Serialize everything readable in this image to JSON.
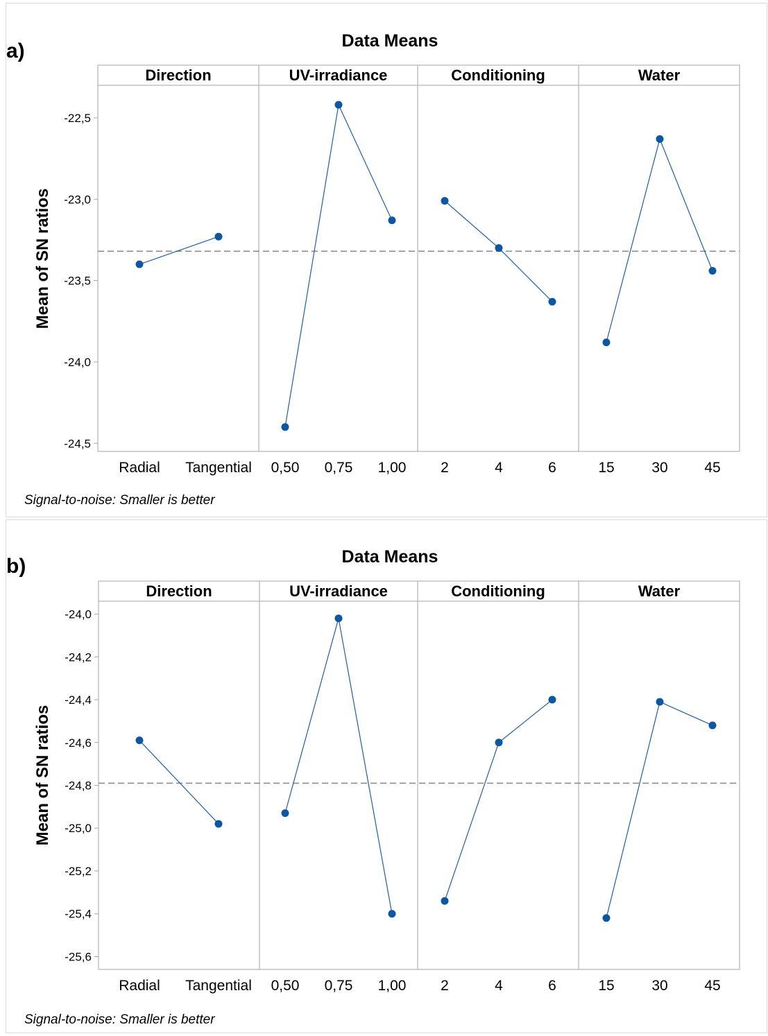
{
  "charts": [
    {
      "panel_label": "a)",
      "title": "Data Means",
      "ylabel": "Mean of SN ratios",
      "footnote": "Signal-to-noise: Smaller is better",
      "ylim": [
        -24.55,
        -22.3
      ],
      "yticks": [
        -22.5,
        -23.0,
        -23.5,
        -24.0,
        -24.5
      ],
      "ytick_labels": [
        "-22,5",
        "-23,0",
        "-23,5",
        "-24,0",
        "-24,5"
      ],
      "reference_mean": -23.32,
      "factors": [
        {
          "name": "Direction",
          "levels": [
            "Radial",
            "Tangential"
          ],
          "values": [
            -23.4,
            -23.23
          ]
        },
        {
          "name": "UV-irradiance",
          "levels": [
            "0,50",
            "0,75",
            "1,00"
          ],
          "values": [
            -24.4,
            -22.42,
            -23.13
          ]
        },
        {
          "name": "Conditioning",
          "levels": [
            "2",
            "4",
            "6"
          ],
          "values": [
            -23.01,
            -23.3,
            -23.63
          ]
        },
        {
          "name": "Water",
          "levels": [
            "15",
            "30",
            "45"
          ],
          "values": [
            -23.88,
            -22.63,
            -23.44
          ]
        }
      ]
    },
    {
      "panel_label": "b)",
      "title": "Data Means",
      "ylabel": "Mean of SN ratios",
      "footnote": "Signal-to-noise: Smaller is better",
      "ylim": [
        -25.66,
        -23.94
      ],
      "yticks": [
        -24.0,
        -24.2,
        -24.4,
        -24.6,
        -24.8,
        -25.0,
        -25.2,
        -25.4,
        -25.6
      ],
      "ytick_labels": [
        "-24,0",
        "-24,2",
        "-24,4",
        "-24,6",
        "-24,8",
        "-25,0",
        "-25,2",
        "-25,4",
        "-25,6"
      ],
      "reference_mean": -24.79,
      "factors": [
        {
          "name": "Direction",
          "levels": [
            "Radial",
            "Tangential"
          ],
          "values": [
            -24.59,
            -24.98
          ]
        },
        {
          "name": "UV-irradiance",
          "levels": [
            "0,50",
            "0,75",
            "1,00"
          ],
          "values": [
            -24.93,
            -24.02,
            -25.4
          ]
        },
        {
          "name": "Conditioning",
          "levels": [
            "2",
            "4",
            "6"
          ],
          "values": [
            -25.34,
            -24.6,
            -24.4
          ]
        },
        {
          "name": "Water",
          "levels": [
            "15",
            "30",
            "45"
          ],
          "values": [
            -25.42,
            -24.41,
            -24.52
          ]
        }
      ]
    }
  ],
  "chart_data": [
    {
      "type": "line",
      "title": "Data Means",
      "ylabel": "Mean of SN ratios",
      "ylim": [
        -24.55,
        -22.3
      ],
      "series": [
        {
          "name": "Direction",
          "x": [
            "Radial",
            "Tangential"
          ],
          "values": [
            -23.4,
            -23.23
          ]
        },
        {
          "name": "UV-irradiance",
          "x": [
            "0,50",
            "0,75",
            "1,00"
          ],
          "values": [
            -24.4,
            -22.42,
            -23.13
          ]
        },
        {
          "name": "Conditioning",
          "x": [
            "2",
            "4",
            "6"
          ],
          "values": [
            -23.01,
            -23.3,
            -23.63
          ]
        },
        {
          "name": "Water",
          "x": [
            "15",
            "30",
            "45"
          ],
          "values": [
            -23.88,
            -22.63,
            -23.44
          ]
        }
      ],
      "reference_mean": -23.32
    },
    {
      "type": "line",
      "title": "Data Means",
      "ylabel": "Mean of SN ratios",
      "ylim": [
        -25.66,
        -23.94
      ],
      "series": [
        {
          "name": "Direction",
          "x": [
            "Radial",
            "Tangential"
          ],
          "values": [
            -24.59,
            -24.98
          ]
        },
        {
          "name": "UV-irradiance",
          "x": [
            "0,50",
            "0,75",
            "1,00"
          ],
          "values": [
            -24.93,
            -24.02,
            -25.4
          ]
        },
        {
          "name": "Conditioning",
          "x": [
            "2",
            "4",
            "6"
          ],
          "values": [
            -25.34,
            -24.6,
            -24.4
          ]
        },
        {
          "name": "Water",
          "x": [
            "15",
            "30",
            "45"
          ],
          "values": [
            -25.42,
            -24.41,
            -24.52
          ]
        }
      ],
      "reference_mean": -24.79
    }
  ],
  "colors": {
    "line": "#1f5fa8",
    "marker": "#0b57a4",
    "reference": "#8c8c8c",
    "frame": "#a6a6a6"
  }
}
